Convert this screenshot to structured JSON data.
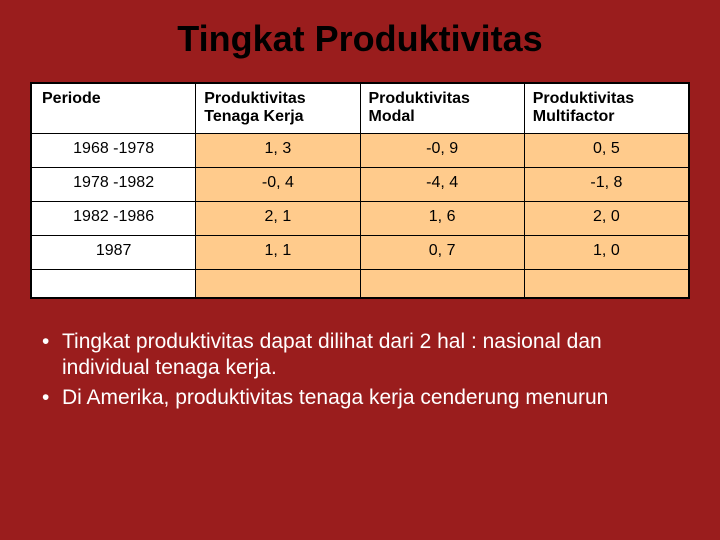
{
  "title": "Tingkat Produktivitas",
  "table": {
    "type": "table",
    "background_color": "#9a1d1d",
    "header_bg": "#ffffff",
    "periode_cell_bg": "#ffffff",
    "value_cell_bg": "#ffcb8c",
    "border_color": "#000000",
    "header_fontsize": 16,
    "cell_fontsize": 16,
    "columns": [
      {
        "label": "Periode",
        "align": "left"
      },
      {
        "label": "Produktivitas Tenaga Kerja",
        "align": "left"
      },
      {
        "label": "Produktivitas Modal",
        "align": "left"
      },
      {
        "label": "Produktivitas Multifactor",
        "align": "left"
      }
    ],
    "rows": [
      [
        "1968 -1978",
        "1, 3",
        "-0, 9",
        "0, 5"
      ],
      [
        "1978 -1982",
        "-0, 4",
        "-4, 4",
        "-1, 8"
      ],
      [
        "1982 -1986",
        "2, 1",
        "1, 6",
        "2, 0"
      ],
      [
        "1987",
        "1, 1",
        "0, 7",
        "1, 0"
      ]
    ]
  },
  "bullets": [
    "Tingkat produktivitas dapat dilihat dari 2 hal : nasional dan individual tenaga kerja.",
    "Di Amerika, produktivitas tenaga kerja cenderung menurun"
  ],
  "style": {
    "slide_bg": "#9a1d1d",
    "title_color": "#000000",
    "title_fontsize": 36,
    "bullet_color": "#ffffff",
    "bullet_fontsize": 21
  }
}
